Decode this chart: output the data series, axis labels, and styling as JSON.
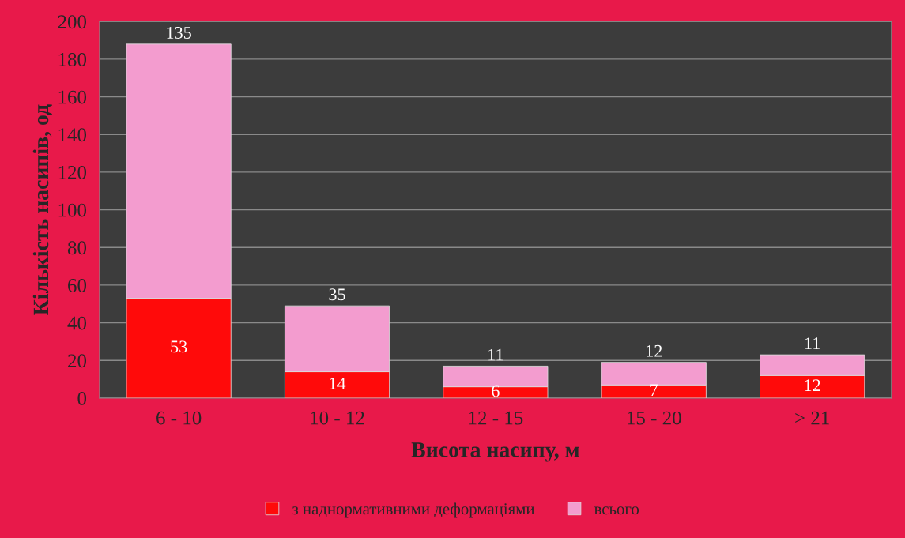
{
  "chart_data": {
    "type": "bar",
    "stacked": true,
    "xlabel": "Висота насипу, м",
    "ylabel": "Кількість насипів, од",
    "categories": [
      "6 - 10",
      "10 - 12",
      "12 - 15",
      "15 - 20",
      "> 21"
    ],
    "series": [
      {
        "name": "з наднормативними деформаціями",
        "color": "#ff0a0a",
        "values": [
          53,
          14,
          6,
          7,
          12
        ]
      },
      {
        "name": "всього",
        "color": "#f39ccf",
        "values": [
          135,
          35,
          11,
          12,
          11
        ]
      }
    ],
    "ylim": [
      0,
      200
    ],
    "yticks": [
      0,
      20,
      40,
      60,
      80,
      100,
      120,
      140,
      160,
      180,
      200
    ],
    "grid": "y",
    "legend": "bottom",
    "data_labels": true
  }
}
